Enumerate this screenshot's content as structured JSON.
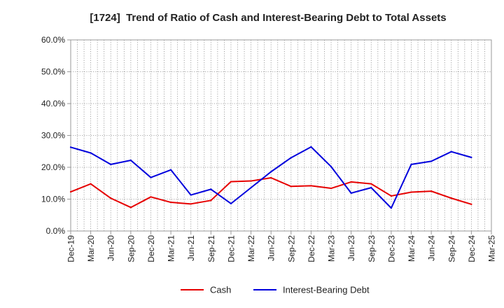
{
  "chart_data": {
    "type": "line",
    "title": "[1724]  Trend of Ratio of Cash and Interest-Bearing Debt to Total Assets",
    "x": [
      "Dec-19",
      "Mar-20",
      "Jun-20",
      "Sep-20",
      "Dec-20",
      "Mar-21",
      "Jun-21",
      "Sep-21",
      "Dec-21",
      "Mar-22",
      "Jun-22",
      "Sep-22",
      "Dec-22",
      "Mar-23",
      "Jun-23",
      "Sep-23",
      "Dec-23",
      "Mar-24",
      "Jun-24",
      "Sep-24",
      "Dec-24",
      "Mar-25"
    ],
    "series": [
      {
        "name": "Cash",
        "color": "#e60000",
        "values": [
          12.3,
          14.8,
          10.3,
          7.4,
          10.7,
          9.0,
          8.5,
          9.6,
          15.5,
          15.7,
          16.7,
          14.0,
          14.2,
          13.4,
          15.4,
          14.8,
          11.0,
          12.2,
          12.5,
          10.3,
          8.4,
          null
        ]
      },
      {
        "name": "Interest-Bearing Debt",
        "color": "#0000dd",
        "values": [
          26.3,
          24.5,
          20.9,
          22.2,
          16.8,
          19.2,
          11.3,
          13.1,
          8.6,
          13.6,
          18.6,
          23.0,
          26.4,
          20.2,
          11.9,
          13.6,
          7.2,
          20.9,
          21.9,
          24.9,
          23.1,
          null
        ]
      }
    ],
    "ylim": [
      0,
      60
    ],
    "yticks": [
      0,
      10,
      20,
      30,
      40,
      50,
      60
    ],
    "ytick_labels": [
      "0.0%",
      "10.0%",
      "20.0%",
      "30.0%",
      "40.0%",
      "50.0%",
      "60.0%"
    ],
    "grid": true,
    "legend": "bottom-center"
  }
}
